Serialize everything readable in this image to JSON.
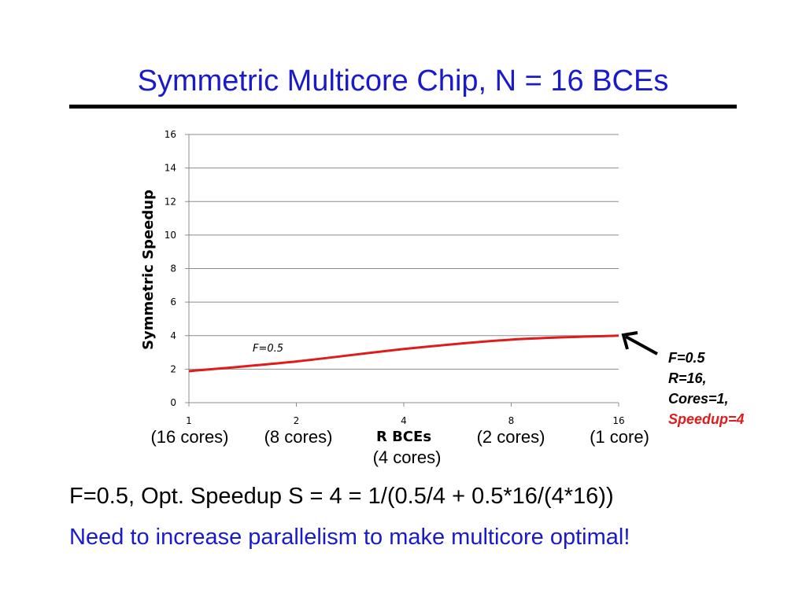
{
  "title": "Symmetric Multicore Chip, N = 16 BCEs",
  "chart_data": {
    "type": "line",
    "ylabel": "Symmetric Speedup",
    "xlabel": "R BCEs",
    "x_scale": "log2",
    "x": [
      1,
      2,
      4,
      8,
      16
    ],
    "x_ticks": [
      "1",
      "2",
      "4",
      "8",
      "16"
    ],
    "y_ticks": [
      "0",
      "2",
      "4",
      "6",
      "8",
      "10",
      "12",
      "14",
      "16"
    ],
    "ylim": [
      0,
      16
    ],
    "grid": true,
    "series": [
      {
        "name": "F=0.5",
        "values": [
          1.88,
          2.46,
          3.2,
          3.76,
          4.0
        ],
        "color": "#e01b1b"
      }
    ],
    "core_labels": [
      "(16 cores)",
      "(8 cores)",
      "(4 cores)",
      "(2 cores)",
      "(1 core)"
    ]
  },
  "callout": {
    "line1": "F=0.5",
    "line2": "R=16,",
    "line3": "Cores=1,",
    "line4": "Speedup=4",
    "highlight_color": "#e01b1b"
  },
  "footer": {
    "line1": "F=0.5, Opt. Speedup S = 4 = 1/(0.5/4 + 0.5*16/(4*16))",
    "line2": "Need to increase parallelism to make multicore optimal!"
  }
}
